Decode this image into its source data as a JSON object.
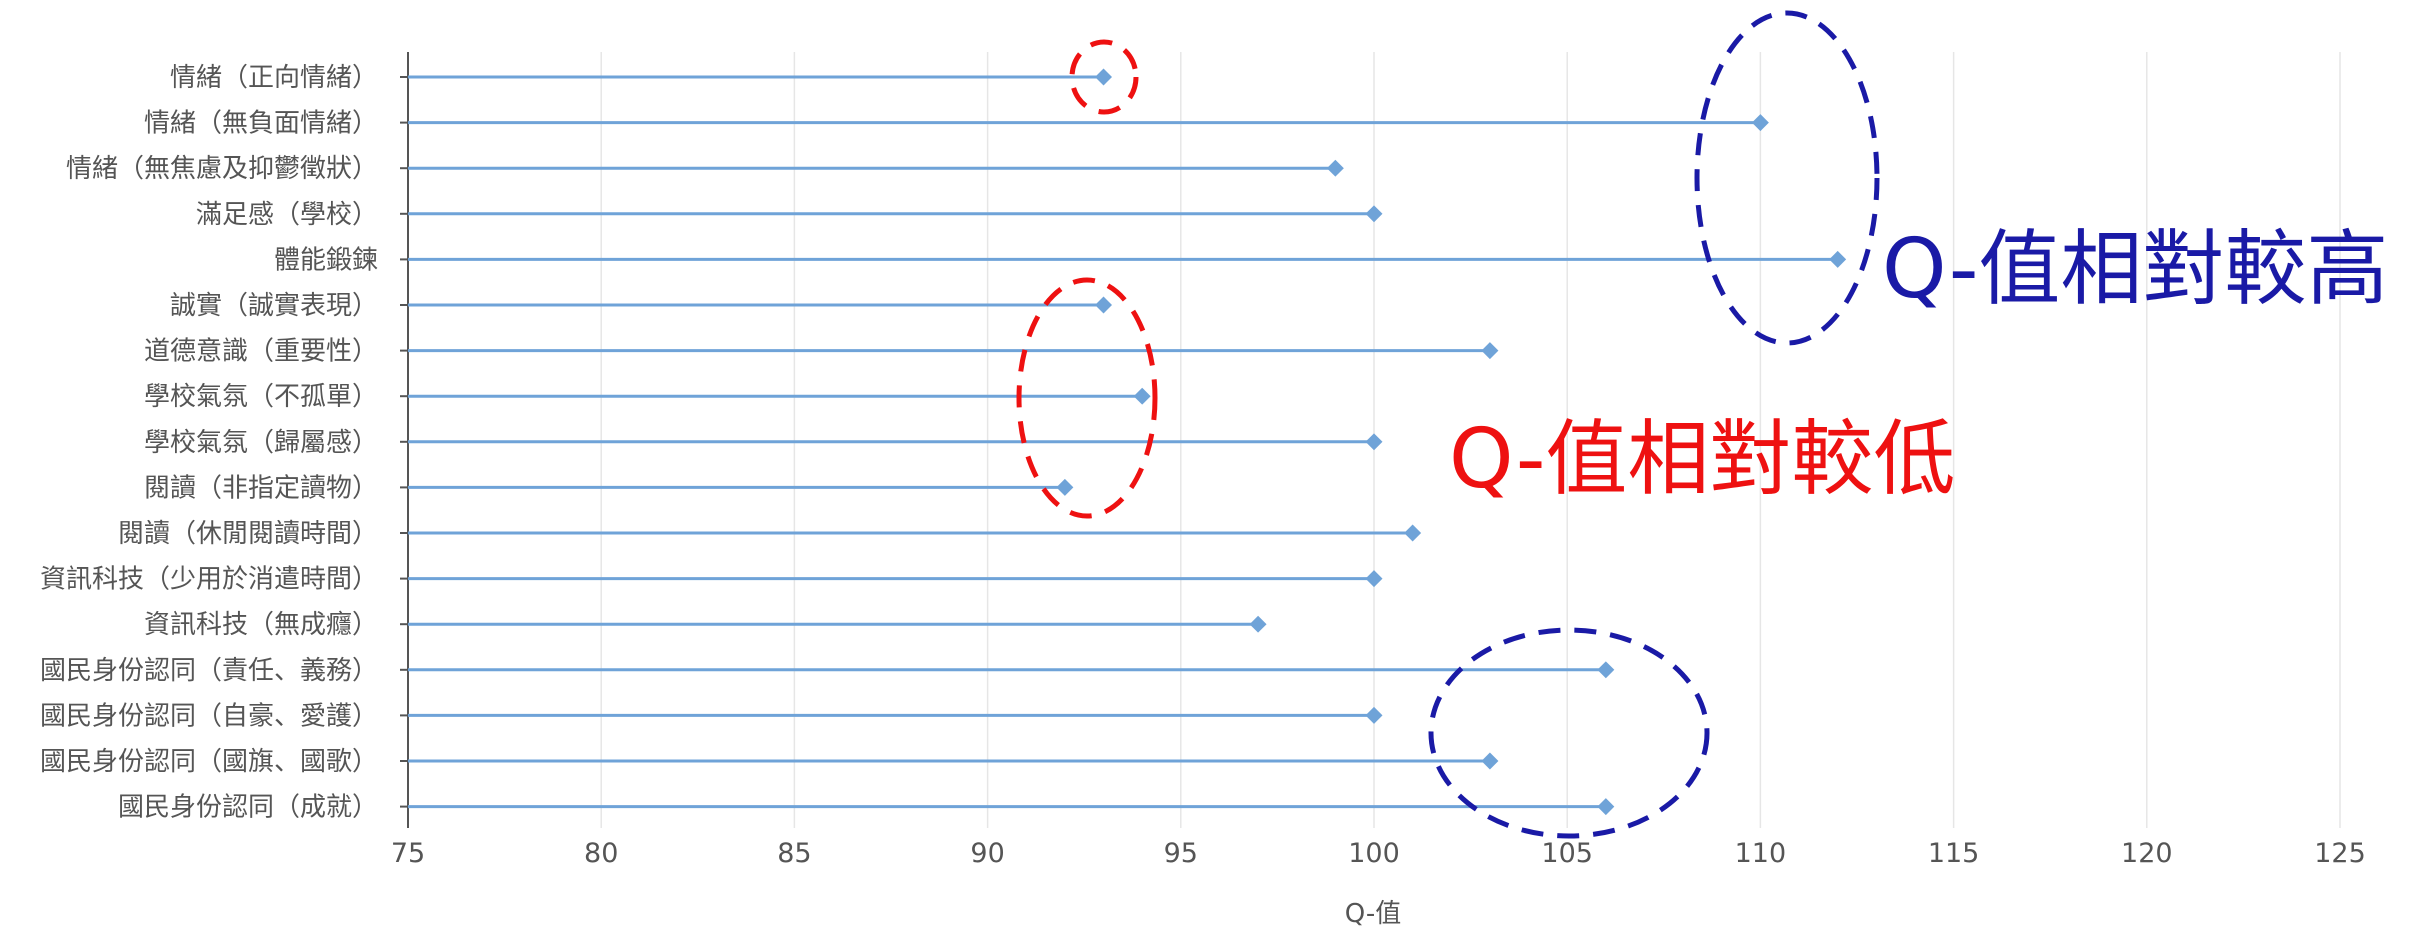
{
  "chart_data": {
    "type": "lollipop",
    "orientation": "horizontal",
    "xlabel": "Q-值",
    "xlim": [
      75,
      125
    ],
    "x_ticks": [
      75,
      80,
      85,
      90,
      95,
      100,
      105,
      110,
      115,
      120,
      125
    ],
    "grid": true,
    "categories": [
      "情緒（正向情緒）",
      "情緒（無負面情緒）",
      "情緒（無焦慮及抑鬱徵狀）",
      "滿足感（學校）",
      "體能鍛鍊",
      "誠實（誠實表現）",
      "道德意識（重要性）",
      "學校氣氛（不孤單）",
      "學校氣氛（歸屬感）",
      "閱讀（非指定讀物）",
      "閱讀（休閒閱讀時間）",
      "資訊科技（少用於消遣時間）",
      "資訊科技（無成癮）",
      "國民身份認同（責任、義務）",
      "國民身份認同（自豪、愛護）",
      "國民身份認同（國旗、國歌）",
      "國民身份認同（成就）"
    ],
    "values": [
      93,
      110,
      99,
      100,
      112,
      93,
      103,
      94,
      100,
      92,
      101,
      100,
      97,
      106,
      100,
      103,
      106
    ],
    "colors": {
      "series": "#6fa3d8",
      "grid": "#e6e6e6",
      "axis": "#555555",
      "label": "#555555"
    },
    "annotations": [
      {
        "text": "Q-值相對較高",
        "color": "#1a1aa6"
      },
      {
        "text": "Q-值相對較低",
        "color": "#ee1111"
      }
    ]
  }
}
